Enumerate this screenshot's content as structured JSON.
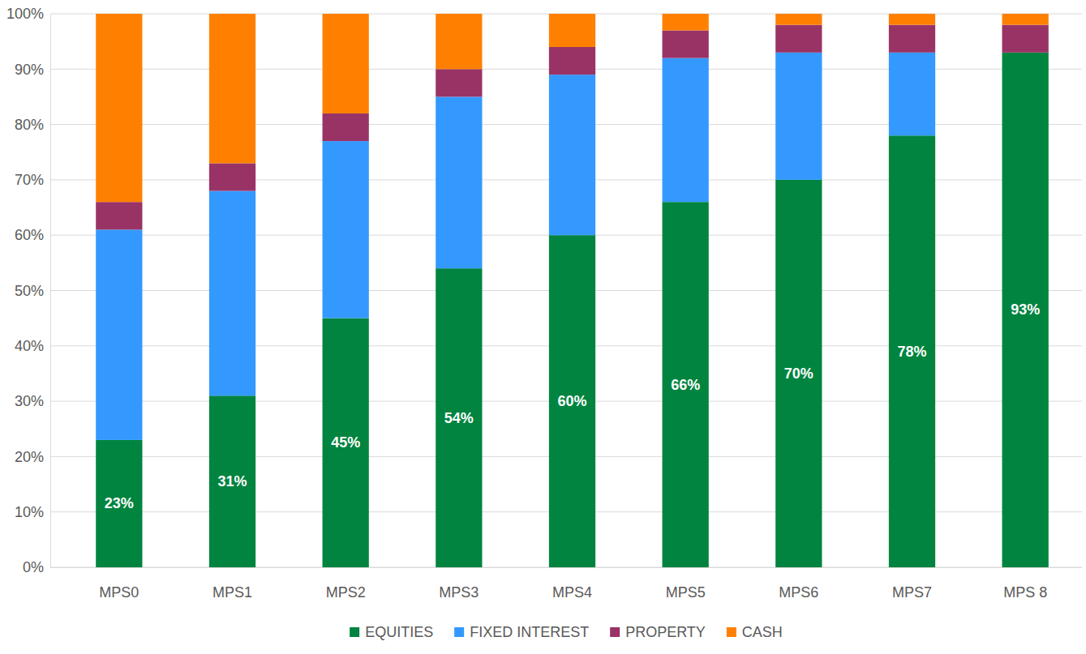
{
  "chart_data": {
    "type": "bar",
    "stacked": true,
    "categories": [
      "MPS0",
      "MPS1",
      "MPS2",
      "MPS3",
      "MPS4",
      "MPS5",
      "MPS6",
      "MPS7",
      "MPS 8"
    ],
    "series": [
      {
        "name": "EQUITIES",
        "color": "#00843f",
        "values": [
          23,
          31,
          45,
          54,
          60,
          66,
          70,
          78,
          93
        ],
        "data_labels": true,
        "value_labels": [
          "23%",
          "31%",
          "45%",
          "54%",
          "60%",
          "66%",
          "70%",
          "78%",
          "93%"
        ]
      },
      {
        "name": "FIXED INTEREST",
        "color": "#3399ff",
        "values": [
          38,
          37,
          32,
          31,
          29,
          26,
          23,
          15,
          0
        ]
      },
      {
        "name": "PROPERTY",
        "color": "#993366",
        "values": [
          5,
          5,
          5,
          5,
          5,
          5,
          5,
          5,
          5
        ]
      },
      {
        "name": "CASH",
        "color": "#ff8000",
        "values": [
          34,
          27,
          18,
          10,
          6,
          3,
          2,
          2,
          2
        ]
      }
    ],
    "ylim": [
      0,
      100
    ],
    "yticks": [
      {
        "value": 0,
        "label": "0%"
      },
      {
        "value": 10,
        "label": "10%"
      },
      {
        "value": 20,
        "label": "20%"
      },
      {
        "value": 30,
        "label": "30%"
      },
      {
        "value": 40,
        "label": "40%"
      },
      {
        "value": 50,
        "label": "50%"
      },
      {
        "value": 60,
        "label": "60%"
      },
      {
        "value": 70,
        "label": "70%"
      },
      {
        "value": 80,
        "label": "80%"
      },
      {
        "value": 90,
        "label": "90%"
      },
      {
        "value": 100,
        "label": "100%"
      }
    ],
    "grid": true,
    "legend": "bottom"
  }
}
